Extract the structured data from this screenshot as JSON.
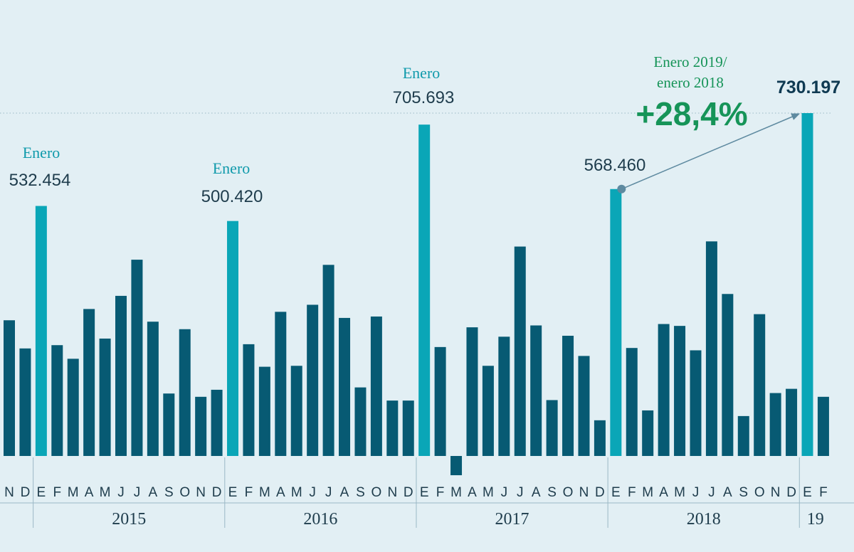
{
  "colors": {
    "background": "#e2eff4",
    "bar": "#075a73",
    "bar_highlight": "#0aa6b7",
    "label_highlight": "#109aab",
    "text": "#1e3c4c",
    "growth": "#169458",
    "arrow": "#5e8aa0",
    "axis": "#9bb8c6"
  },
  "chart_data": {
    "type": "bar",
    "categories": [
      "N",
      "D",
      "E",
      "F",
      "M",
      "A",
      "M",
      "J",
      "J",
      "A",
      "S",
      "O",
      "N",
      "D",
      "E",
      "F",
      "M",
      "A",
      "M",
      "J",
      "J",
      "A",
      "S",
      "O",
      "N",
      "D",
      "E",
      "F",
      "M",
      "A",
      "M",
      "J",
      "J",
      "A",
      "S",
      "O",
      "N",
      "D",
      "E",
      "F",
      "M",
      "A",
      "M",
      "J",
      "J",
      "A",
      "S",
      "O",
      "N",
      "D",
      "E",
      "F"
    ],
    "values": [
      289000,
      229000,
      532454,
      236000,
      207000,
      313000,
      250000,
      341000,
      418000,
      286000,
      133000,
      270000,
      126000,
      141000,
      500420,
      238000,
      190000,
      307000,
      192000,
      322000,
      407000,
      294000,
      146000,
      297000,
      118000,
      118000,
      705693,
      232000,
      -41000,
      274000,
      192000,
      254000,
      446000,
      278000,
      119000,
      256000,
      213000,
      76000,
      568460,
      230000,
      97000,
      281000,
      277000,
      225000,
      457000,
      345000,
      85000,
      302000,
      134000,
      143000,
      730197,
      126000
    ],
    "highlight_indices": [
      2,
      14,
      26,
      38,
      50
    ],
    "years": [
      {
        "label": "2015",
        "start": 2,
        "end": 13
      },
      {
        "label": "2016",
        "start": 14,
        "end": 25
      },
      {
        "label": "2017",
        "start": 26,
        "end": 37
      },
      {
        "label": "2018",
        "start": 38,
        "end": 49
      },
      {
        "label": "19",
        "start": 50,
        "end": 51
      }
    ],
    "ylim": [
      -50000,
      740000
    ],
    "reference_value": 730197,
    "annotations": [
      {
        "label": "Enero",
        "value": "532.454"
      },
      {
        "label": "Enero",
        "value": "500.420"
      },
      {
        "label": "Enero",
        "value": "705.693"
      },
      {
        "value": "568.460"
      },
      {
        "value": "730.197"
      }
    ],
    "comparison": {
      "label_line1": "Enero 2019/",
      "label_line2": "enero 2018",
      "change": "+28,4%"
    }
  }
}
